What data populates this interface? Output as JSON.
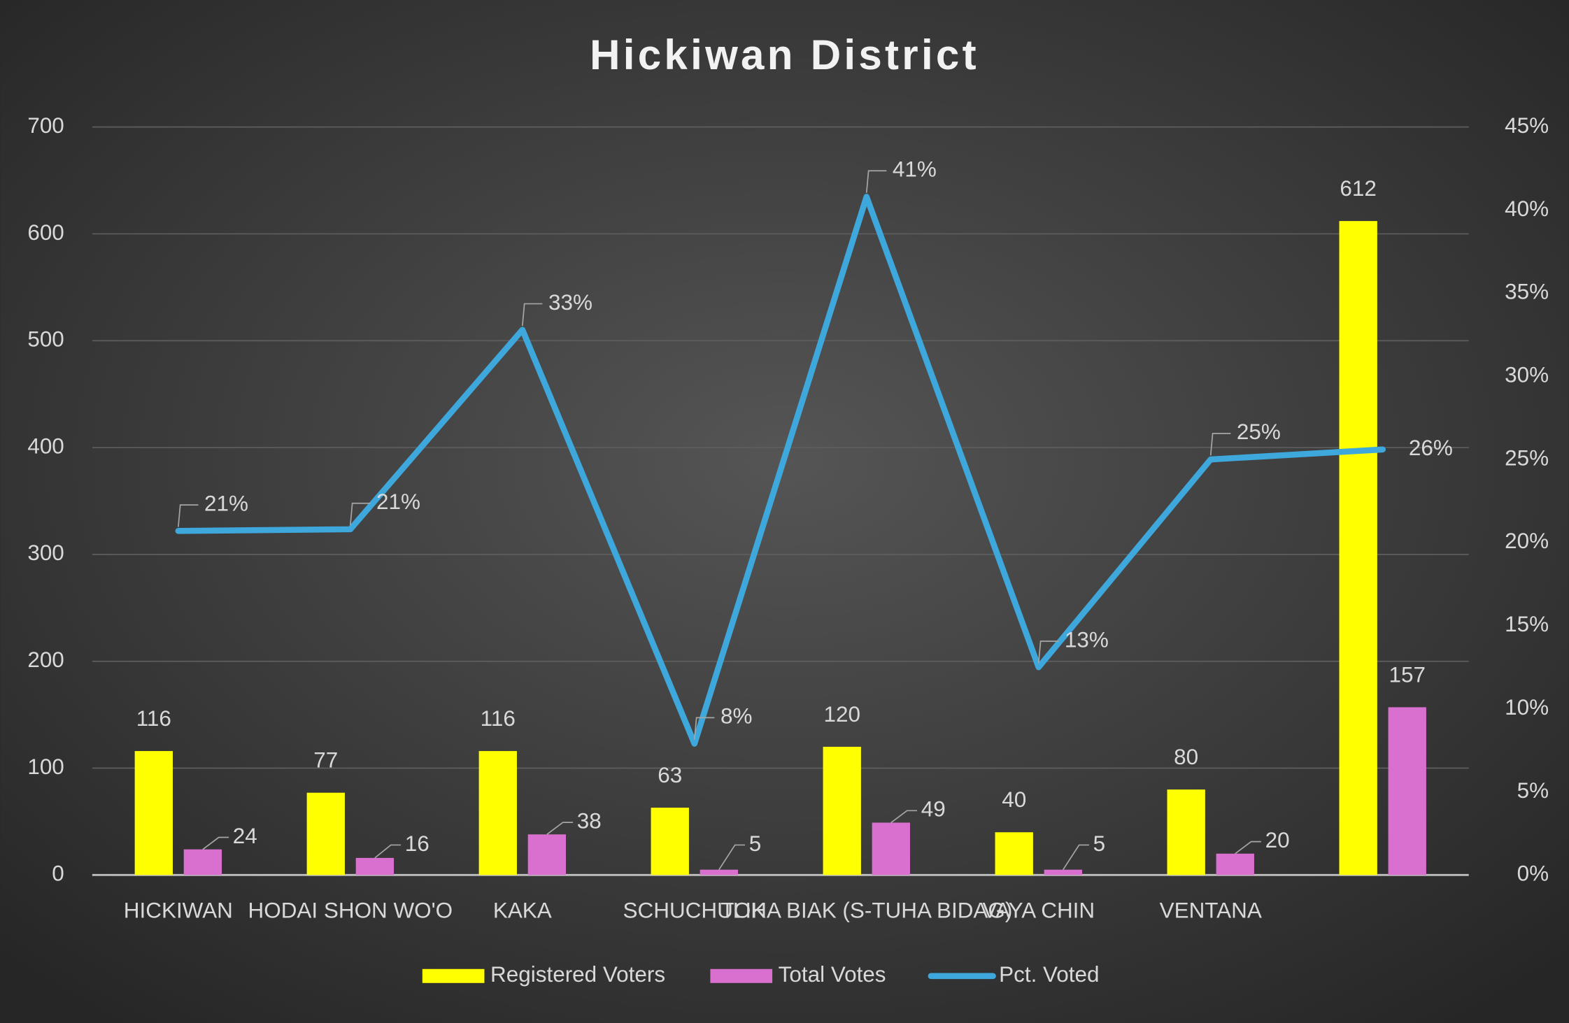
{
  "chart_data": {
    "type": "bar",
    "title": "Hickiwan District",
    "categories": [
      "HICKIWAN",
      "HODAI SHON WO'O",
      "KAKA",
      "SCHUCHULIK",
      "TOHA BIAK (S-TUHA BIDAG)",
      "VAYA CHIN",
      "VENTANA",
      null
    ],
    "series": [
      {
        "name": "Registered Voters",
        "type": "bar",
        "color": "#ffff00",
        "values": [
          116,
          77,
          116,
          63,
          120,
          40,
          80,
          612
        ]
      },
      {
        "name": "Total Votes",
        "type": "bar",
        "color": "#d96fce",
        "values": [
          24,
          16,
          38,
          5,
          49,
          5,
          20,
          157
        ]
      },
      {
        "name": "Pct. Voted",
        "type": "line",
        "axis": "y2",
        "color": "#3ea8dc",
        "values": [
          20.7,
          20.8,
          32.8,
          7.9,
          40.8,
          12.5,
          25,
          25.6
        ],
        "value_labels": [
          "21%",
          "21%",
          "33%",
          "8%",
          "41%",
          "13%",
          "25%",
          "26%"
        ]
      }
    ],
    "ylim": [
      0,
      700
    ],
    "yticks": [
      0,
      100,
      200,
      300,
      400,
      500,
      600,
      700
    ],
    "y2lim": [
      0,
      45
    ],
    "y2ticks": [
      {
        "value": 0,
        "label": "0%"
      },
      {
        "value": 5,
        "label": "5%"
      },
      {
        "value": 10,
        "label": "10%"
      },
      {
        "value": 15,
        "label": "15%"
      },
      {
        "value": 20,
        "label": "20%"
      },
      {
        "value": 25,
        "label": "25%"
      },
      {
        "value": 30,
        "label": "30%"
      },
      {
        "value": 35,
        "label": "35%"
      },
      {
        "value": 40,
        "label": "40%"
      },
      {
        "value": 45,
        "label": "45%"
      }
    ],
    "grid": true,
    "legend": "bottom"
  }
}
